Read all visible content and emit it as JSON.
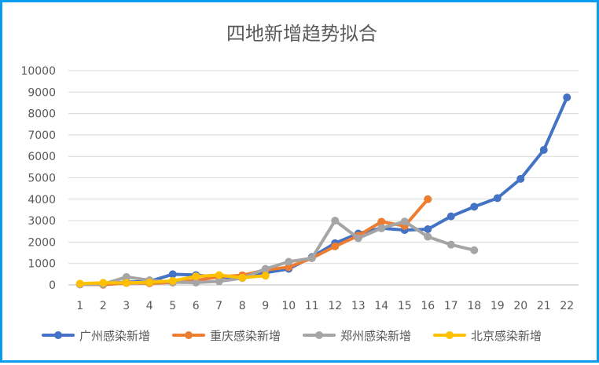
{
  "chart_data": {
    "type": "line",
    "title": "四地新增趋势拟合",
    "xlabel": "",
    "ylabel": "",
    "x": [
      1,
      2,
      3,
      4,
      5,
      6,
      7,
      8,
      9,
      10,
      11,
      12,
      13,
      14,
      15,
      16,
      17,
      18,
      19,
      20,
      21,
      22
    ],
    "ylim": [
      0,
      10000
    ],
    "yticks": [
      0,
      1000,
      2000,
      3000,
      4000,
      5000,
      6000,
      7000,
      8000,
      9000,
      10000
    ],
    "grid": true,
    "legend_position": "bottom",
    "series": [
      {
        "name": "广州感染新增",
        "color": "#4472c4",
        "x": [
          1,
          2,
          3,
          4,
          5,
          6,
          7,
          8,
          9,
          10,
          11,
          12,
          13,
          14,
          15,
          16,
          17,
          18,
          19,
          20,
          21,
          22
        ],
        "values": [
          50,
          60,
          130,
          170,
          500,
          460,
          360,
          380,
          570,
          750,
          1300,
          1950,
          2400,
          2650,
          2560,
          2600,
          3200,
          3650,
          4050,
          4950,
          6300,
          8750
        ]
      },
      {
        "name": "重庆感染新增",
        "color": "#ed7d31",
        "x": [
          1,
          2,
          3,
          4,
          5,
          6,
          7,
          8,
          9,
          10,
          11,
          12,
          13,
          14,
          15,
          16
        ],
        "values": [
          30,
          10,
          90,
          80,
          110,
          210,
          380,
          450,
          700,
          830,
          1250,
          1800,
          2300,
          2950,
          2750,
          4000
        ]
      },
      {
        "name": "郑州感染新增",
        "color": "#a5a5a5",
        "x": [
          1,
          2,
          3,
          4,
          5,
          6,
          7,
          8,
          9,
          10,
          11,
          12,
          13,
          14,
          15,
          16,
          17,
          18
        ],
        "values": [
          20,
          40,
          370,
          220,
          130,
          110,
          170,
          320,
          750,
          1080,
          1250,
          3000,
          2180,
          2650,
          2960,
          2250,
          1880,
          1620
        ]
      },
      {
        "name": "北京感染新增",
        "color": "#ffc000",
        "x": [
          1,
          2,
          3,
          4,
          5,
          6,
          7,
          8,
          9
        ],
        "values": [
          60,
          100,
          100,
          120,
          190,
          400,
          460,
          340,
          430
        ]
      }
    ]
  }
}
